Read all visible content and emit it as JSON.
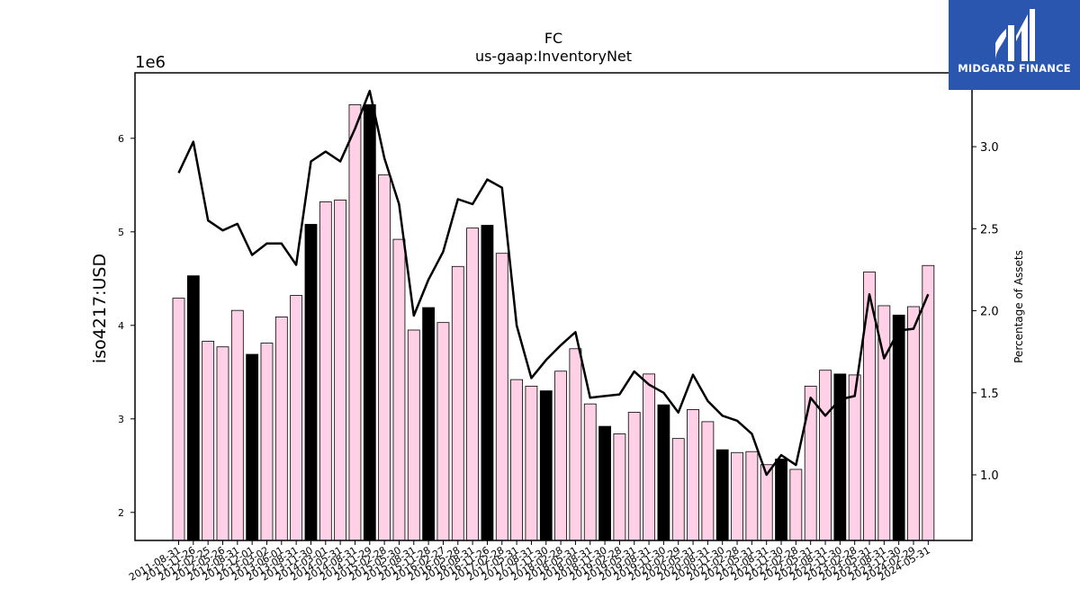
{
  "brand": {
    "name": "MIDGARD FINANCE",
    "bg_color": "#2a56b0"
  },
  "chart_data": {
    "type": "bar",
    "title": "FC",
    "subtitle": "us-gaap:InventoryNet",
    "ylabel": "iso4217:USD",
    "y2label": "Percentage of Assets",
    "y_offset_label": "1e6",
    "ylim": [
      1700000,
      6700000
    ],
    "y2lim": [
      0.6,
      3.45
    ],
    "yticks": [
      2,
      3,
      4,
      5,
      6
    ],
    "y2ticks": [
      "1.0",
      "1.5",
      "2.0",
      "2.5",
      "3.0"
    ],
    "colors": {
      "pink": "#ffd0e6",
      "black": "#000000",
      "line": "#000000"
    },
    "categories": [
      "2011-08-31",
      "2011-11-26",
      "2012-02-25",
      "2012-05-26",
      "2012-08-31",
      "2012-12-01",
      "2013-03-02",
      "2013-06-01",
      "2013-08-31",
      "2013-11-30",
      "2014-03-01",
      "2014-05-31",
      "2014-08-31",
      "2014-11-29",
      "2015-02-28",
      "2015-05-30",
      "2015-08-31",
      "2015-11-28",
      "2016-02-27",
      "2016-05-28",
      "2016-08-31",
      "2016-11-26",
      "2017-02-28",
      "2017-05-31",
      "2017-08-31",
      "2017-11-30",
      "2018-02-28",
      "2018-05-31",
      "2018-08-31",
      "2018-11-30",
      "2019-02-28",
      "2019-05-31",
      "2019-08-31",
      "2019-11-30",
      "2020-02-29",
      "2020-05-31",
      "2020-08-31",
      "2020-11-30",
      "2021-02-28",
      "2021-05-31",
      "2021-08-31",
      "2021-11-30",
      "2022-02-28",
      "2022-05-31",
      "2022-08-31",
      "2022-11-30",
      "2023-02-28",
      "2023-05-31",
      "2023-08-31",
      "2023-11-30",
      "2024-02-29",
      "2024-05-31"
    ],
    "series": [
      {
        "values": [
          4290000,
          4530000,
          3830000,
          3770000,
          4160000,
          3690000,
          3810000,
          4090000,
          4320000,
          5080000,
          5320000,
          5340000,
          6360000,
          6360000,
          5610000,
          4920000,
          3950000,
          4190000,
          4030000,
          4630000,
          5040000,
          5070000,
          4770000,
          3420000,
          3350000,
          3300000,
          3510000,
          3750000,
          3160000,
          2920000,
          2840000,
          3070000,
          3480000,
          3150000,
          2790000,
          3100000,
          2970000,
          2670000,
          2640000,
          2650000,
          2510000,
          2570000,
          2460000,
          3350000,
          3520000,
          3480000,
          3470000,
          4570000,
          4210000,
          4110000,
          4200000,
          4640000
        ],
        "bar_colors": [
          "pink",
          "black",
          "pink",
          "pink",
          "pink",
          "black",
          "pink",
          "pink",
          "pink",
          "black",
          "pink",
          "pink",
          "pink",
          "black",
          "pink",
          "pink",
          "pink",
          "black",
          "pink",
          "pink",
          "pink",
          "black",
          "pink",
          "pink",
          "pink",
          "black",
          "pink",
          "pink",
          "pink",
          "black",
          "pink",
          "pink",
          "pink",
          "black",
          "pink",
          "pink",
          "pink",
          "black",
          "pink",
          "pink",
          "pink",
          "black",
          "pink",
          "pink",
          "pink",
          "black",
          "pink",
          "pink",
          "pink",
          "black",
          "pink",
          "pink"
        ]
      },
      {
        "axis": "right",
        "type": "line",
        "values": [
          2.84,
          3.03,
          2.55,
          2.49,
          2.53,
          2.34,
          2.41,
          2.41,
          2.28,
          2.91,
          2.97,
          2.91,
          3.11,
          3.34,
          2.93,
          2.65,
          1.97,
          2.19,
          2.36,
          2.68,
          2.65,
          2.8,
          2.75,
          1.91,
          1.59,
          1.7,
          1.79,
          1.87,
          1.47,
          1.48,
          1.49,
          1.63,
          1.55,
          1.5,
          1.38,
          1.61,
          1.45,
          1.36,
          1.33,
          1.25,
          1.0,
          1.12,
          1.06,
          1.47,
          1.36,
          1.46,
          1.48,
          2.1,
          1.71,
          1.88,
          1.89,
          2.1
        ]
      }
    ]
  }
}
